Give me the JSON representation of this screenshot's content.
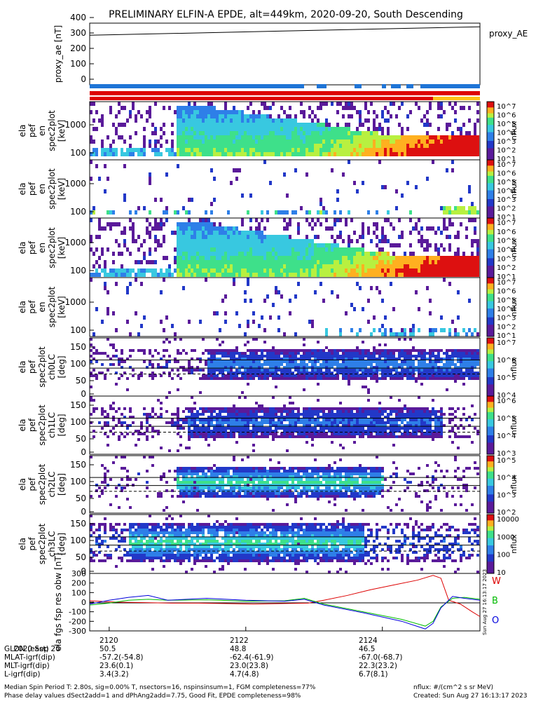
{
  "title": "PRELIMINARY ELFIN-A EPDE, alt=449km, 2020-09-20, South Descending",
  "chart_data": [
    {
      "type": "line",
      "ylabel": "proxy_ae [nT]",
      "legend": "proxy_AE",
      "ylim": [
        0,
        400
      ],
      "yticks": [
        "400",
        "300",
        "200",
        "100",
        "0"
      ],
      "x": [
        0,
        1
      ],
      "values": [
        285,
        340
      ]
    },
    {
      "type": "heatmap",
      "ylabel": "ela pef en spec2plot [keV]",
      "yticks": [
        "1000",
        "100"
      ],
      "colorbar_label": "nflux",
      "colorbar_ticks": [
        "10^7",
        "10^6",
        "10^5",
        "10^4",
        "10^3",
        "10^2",
        "10^1"
      ]
    },
    {
      "type": "heatmap",
      "ylabel": "ela pef en spec2plot [keV]",
      "yticks": [
        "1000",
        "100"
      ],
      "colorbar_label": "nflux",
      "colorbar_ticks": [
        "10^7",
        "10^6",
        "10^5",
        "10^4",
        "10^3",
        "10^2",
        "10^1"
      ]
    },
    {
      "type": "heatmap",
      "ylabel": "ela pef en spec2plot [keV]",
      "yticks": [
        "1000",
        "100"
      ],
      "colorbar_label": "nflux",
      "colorbar_ticks": [
        "10^7",
        "10^6",
        "10^5",
        "10^4",
        "10^3",
        "10^2",
        "10^1"
      ]
    },
    {
      "type": "heatmap",
      "ylabel": "ela pef en spec2plot [keV]",
      "yticks": [
        "1000",
        "100"
      ],
      "colorbar_label": "nflux",
      "colorbar_ticks": [
        "10^7",
        "10^6",
        "10^5",
        "10^4",
        "10^3",
        "10^2",
        "10^1"
      ]
    },
    {
      "type": "heatmap",
      "ylabel": "ela pef spec2plot ch0LC [deg]",
      "yticks": [
        "150",
        "100",
        "50",
        "0"
      ],
      "colorbar_label": "nflux",
      "colorbar_ticks": [
        "10^7",
        "10^6",
        "10^5",
        "10^4"
      ]
    },
    {
      "type": "heatmap",
      "ylabel": "ela pef spec2plot ch1LC [deg]",
      "yticks": [
        "150",
        "100",
        "50",
        "0"
      ],
      "colorbar_label": "nflux",
      "colorbar_ticks": [
        "10^6",
        "10^5",
        "10^4",
        "10^3"
      ]
    },
    {
      "type": "heatmap",
      "ylabel": "ela pef spec2plot ch2LC [deg]",
      "yticks": [
        "150",
        "100",
        "50",
        "0"
      ],
      "colorbar_label": "nflux",
      "colorbar_ticks": [
        "10^5",
        "10^4",
        "10^3",
        "10^2"
      ]
    },
    {
      "type": "heatmap",
      "ylabel": "ela pef spec2plot ch3LC [deg]",
      "yticks": [
        "150",
        "100",
        "50",
        "0"
      ],
      "colorbar_label": "nflux",
      "colorbar_ticks": [
        "10000",
        "1000",
        "100",
        "10"
      ]
    },
    {
      "type": "line",
      "ylabel": "ela fgs fsp res obw [nT]",
      "ylim": [
        -300,
        300
      ],
      "yticks": [
        "300",
        "200",
        "100",
        "0",
        "-100",
        "-200",
        "-300"
      ],
      "legend_items": [
        "W",
        "B",
        "O"
      ],
      "series": [
        {
          "name": "W",
          "color": "#dd0000",
          "x": [
            0,
            0.07,
            0.14,
            0.21,
            0.28,
            0.35,
            0.42,
            0.49,
            0.56,
            0.6,
            0.66,
            0.72,
            0.78,
            0.84,
            0.88,
            0.9,
            0.92,
            0.95,
            0.98,
            1.0
          ],
          "values": [
            15,
            0,
            -5,
            -10,
            -10,
            -15,
            -20,
            -15,
            -10,
            20,
            70,
            130,
            180,
            230,
            280,
            250,
            20,
            -20,
            -100,
            -150
          ]
        },
        {
          "name": "B",
          "color": "#00bb00",
          "x": [
            0,
            0.05,
            0.1,
            0.15,
            0.2,
            0.3,
            0.4,
            0.5,
            0.55,
            0.6,
            0.7,
            0.8,
            0.86,
            0.88,
            0.9,
            0.93,
            0.96,
            1.0
          ],
          "values": [
            -30,
            -10,
            20,
            30,
            20,
            25,
            10,
            15,
            40,
            -20,
            -100,
            -180,
            -250,
            -200,
            -50,
            40,
            50,
            30
          ]
        },
        {
          "name": "O",
          "color": "#0000dd",
          "x": [
            0,
            0.05,
            0.1,
            0.15,
            0.2,
            0.3,
            0.4,
            0.5,
            0.55,
            0.6,
            0.7,
            0.8,
            0.86,
            0.88,
            0.9,
            0.93,
            0.96,
            1.0
          ],
          "values": [
            -20,
            20,
            50,
            70,
            20,
            40,
            20,
            10,
            30,
            -30,
            -110,
            -200,
            -280,
            -220,
            -60,
            60,
            40,
            20
          ]
        }
      ],
      "side_text": "Sun Aug 27 16:13:17 2023"
    }
  ],
  "footer": {
    "rows": [
      [
        "2020 Sep 20",
        "2120",
        "2122",
        "2124"
      ],
      [
        "GLON (east)",
        "50.5",
        "48.8",
        "46.5"
      ],
      [
        "MLAT-igrf(dip)",
        "-57.2(-54.8)",
        "-62.4(-61.9)",
        "-67.0(-68.7)"
      ],
      [
        "MLT-igrf(dip)",
        "23.6(0.1)",
        "23.0(23.8)",
        "22.3(23.2)"
      ],
      [
        "L-igrf(dip)",
        "3.4(3.2)",
        "4.7(4.8)",
        "6.7(8.1)"
      ]
    ],
    "line1": "Median Spin Period T: 2.80s, sig=0.00% T, nsectors=16, nspinsinsum=1, FGM completeness=77%",
    "line2": "Phase delay values dSect2add=1 and dPhAng2add=7.75, Good Fit, EPDE completeness=98%",
    "right1": "nflux: #/(cm^2 s sr MeV)",
    "right2": "Created: Sun Aug 27 16:13:17 2023"
  }
}
